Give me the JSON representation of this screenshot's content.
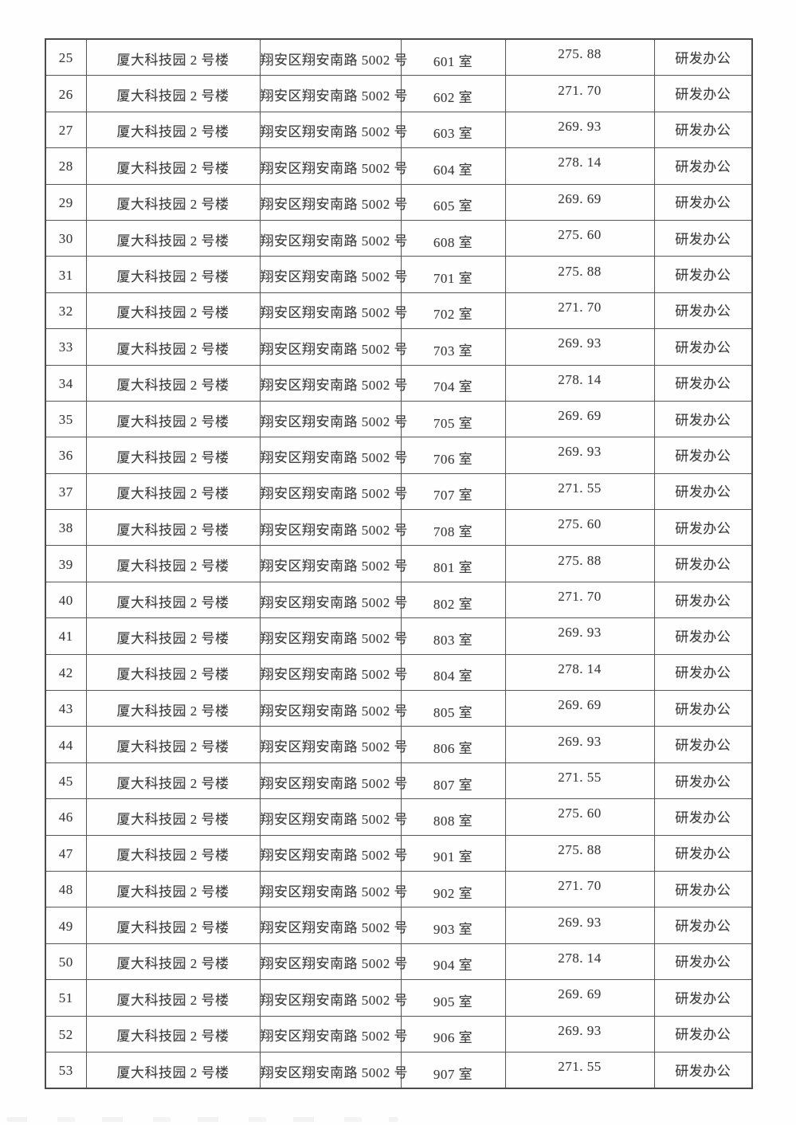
{
  "page": {
    "kind": "scanned-table-page",
    "background": "#fefefe"
  },
  "colors": {
    "text": "#3d3d3d",
    "border": "#565656",
    "page_background": "#fefefe"
  },
  "table": {
    "columns": [
      {
        "key": "index",
        "name": "row-number"
      },
      {
        "key": "building",
        "name": "building-name"
      },
      {
        "key": "address",
        "name": "address"
      },
      {
        "key": "room",
        "name": "room-number"
      },
      {
        "key": "area",
        "name": "area-value"
      },
      {
        "key": "usage",
        "name": "usage-type"
      }
    ],
    "rows": [
      {
        "index": "25",
        "building": "厦大科技园 2 号楼",
        "address": "翔安区翔安南路 5002 号",
        "room": "601 室",
        "area": "275. 88",
        "usage": "研发办公"
      },
      {
        "index": "26",
        "building": "厦大科技园 2 号楼",
        "address": "翔安区翔安南路 5002 号",
        "room": "602 室",
        "area": "271. 70",
        "usage": "研发办公"
      },
      {
        "index": "27",
        "building": "厦大科技园 2 号楼",
        "address": "翔安区翔安南路 5002 号",
        "room": "603 室",
        "area": "269. 93",
        "usage": "研发办公"
      },
      {
        "index": "28",
        "building": "厦大科技园 2 号楼",
        "address": "翔安区翔安南路 5002 号",
        "room": "604 室",
        "area": "278. 14",
        "usage": "研发办公"
      },
      {
        "index": "29",
        "building": "厦大科技园 2 号楼",
        "address": "翔安区翔安南路 5002 号",
        "room": "605 室",
        "area": "269. 69",
        "usage": "研发办公"
      },
      {
        "index": "30",
        "building": "厦大科技园 2 号楼",
        "address": "翔安区翔安南路 5002 号",
        "room": "608 室",
        "area": "275. 60",
        "usage": "研发办公"
      },
      {
        "index": "31",
        "building": "厦大科技园 2 号楼",
        "address": "翔安区翔安南路 5002 号",
        "room": "701 室",
        "area": "275. 88",
        "usage": "研发办公"
      },
      {
        "index": "32",
        "building": "厦大科技园 2 号楼",
        "address": "翔安区翔安南路 5002 号",
        "room": "702 室",
        "area": "271. 70",
        "usage": "研发办公"
      },
      {
        "index": "33",
        "building": "厦大科技园 2 号楼",
        "address": "翔安区翔安南路 5002 号",
        "room": "703 室",
        "area": "269. 93",
        "usage": "研发办公"
      },
      {
        "index": "34",
        "building": "厦大科技园 2 号楼",
        "address": "翔安区翔安南路 5002 号",
        "room": "704 室",
        "area": "278. 14",
        "usage": "研发办公"
      },
      {
        "index": "35",
        "building": "厦大科技园 2 号楼",
        "address": "翔安区翔安南路 5002 号",
        "room": "705 室",
        "area": "269. 69",
        "usage": "研发办公"
      },
      {
        "index": "36",
        "building": "厦大科技园 2 号楼",
        "address": "翔安区翔安南路 5002 号",
        "room": "706 室",
        "area": "269. 93",
        "usage": "研发办公"
      },
      {
        "index": "37",
        "building": "厦大科技园 2 号楼",
        "address": "翔安区翔安南路 5002 号",
        "room": "707 室",
        "area": "271. 55",
        "usage": "研发办公"
      },
      {
        "index": "38",
        "building": "厦大科技园 2 号楼",
        "address": "翔安区翔安南路 5002 号",
        "room": "708 室",
        "area": "275. 60",
        "usage": "研发办公"
      },
      {
        "index": "39",
        "building": "厦大科技园 2 号楼",
        "address": "翔安区翔安南路 5002 号",
        "room": "801 室",
        "area": "275. 88",
        "usage": "研发办公"
      },
      {
        "index": "40",
        "building": "厦大科技园 2 号楼",
        "address": "翔安区翔安南路 5002 号",
        "room": "802 室",
        "area": "271. 70",
        "usage": "研发办公"
      },
      {
        "index": "41",
        "building": "厦大科技园 2 号楼",
        "address": "翔安区翔安南路 5002 号",
        "room": "803 室",
        "area": "269. 93",
        "usage": "研发办公"
      },
      {
        "index": "42",
        "building": "厦大科技园 2 号楼",
        "address": "翔安区翔安南路 5002 号",
        "room": "804 室",
        "area": "278. 14",
        "usage": "研发办公"
      },
      {
        "index": "43",
        "building": "厦大科技园 2 号楼",
        "address": "翔安区翔安南路 5002 号",
        "room": "805 室",
        "area": "269. 69",
        "usage": "研发办公"
      },
      {
        "index": "44",
        "building": "厦大科技园 2 号楼",
        "address": "翔安区翔安南路 5002 号",
        "room": "806 室",
        "area": "269. 93",
        "usage": "研发办公"
      },
      {
        "index": "45",
        "building": "厦大科技园 2 号楼",
        "address": "翔安区翔安南路 5002 号",
        "room": "807 室",
        "area": "271. 55",
        "usage": "研发办公"
      },
      {
        "index": "46",
        "building": "厦大科技园 2 号楼",
        "address": "翔安区翔安南路 5002 号",
        "room": "808 室",
        "area": "275. 60",
        "usage": "研发办公"
      },
      {
        "index": "47",
        "building": "厦大科技园 2 号楼",
        "address": "翔安区翔安南路 5002 号",
        "room": "901 室",
        "area": "275. 88",
        "usage": "研发办公"
      },
      {
        "index": "48",
        "building": "厦大科技园 2 号楼",
        "address": "翔安区翔安南路 5002 号",
        "room": "902 室",
        "area": "271. 70",
        "usage": "研发办公"
      },
      {
        "index": "49",
        "building": "厦大科技园 2 号楼",
        "address": "翔安区翔安南路 5002 号",
        "room": "903 室",
        "area": "269. 93",
        "usage": "研发办公"
      },
      {
        "index": "50",
        "building": "厦大科技园 2 号楼",
        "address": "翔安区翔安南路 5002 号",
        "room": "904 室",
        "area": "278. 14",
        "usage": "研发办公"
      },
      {
        "index": "51",
        "building": "厦大科技园 2 号楼",
        "address": "翔安区翔安南路 5002 号",
        "room": "905 室",
        "area": "269. 69",
        "usage": "研发办公"
      },
      {
        "index": "52",
        "building": "厦大科技园 2 号楼",
        "address": "翔安区翔安南路 5002 号",
        "room": "906 室",
        "area": "269. 93",
        "usage": "研发办公"
      },
      {
        "index": "53",
        "building": "厦大科技园 2 号楼",
        "address": "翔安区翔安南路 5002 号",
        "room": "907 室",
        "area": "271. 55",
        "usage": "研发办公"
      }
    ]
  }
}
